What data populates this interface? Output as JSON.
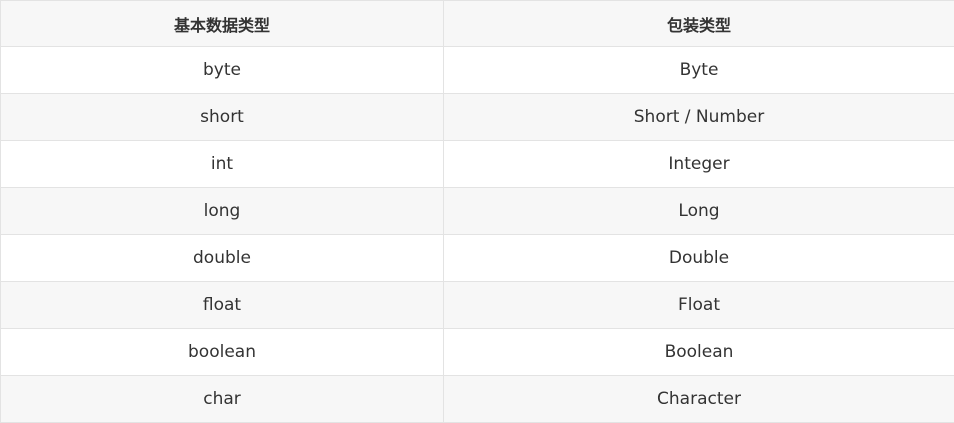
{
  "table": {
    "headers": [
      "基本数据类型",
      "包装类型"
    ],
    "rows": [
      [
        "byte",
        "Byte"
      ],
      [
        "short",
        "Short / Number"
      ],
      [
        "int",
        "Integer"
      ],
      [
        "long",
        "Long"
      ],
      [
        "double",
        "Double"
      ],
      [
        "float",
        "Float"
      ],
      [
        "boolean",
        "Boolean"
      ],
      [
        "char",
        "Character"
      ]
    ]
  }
}
